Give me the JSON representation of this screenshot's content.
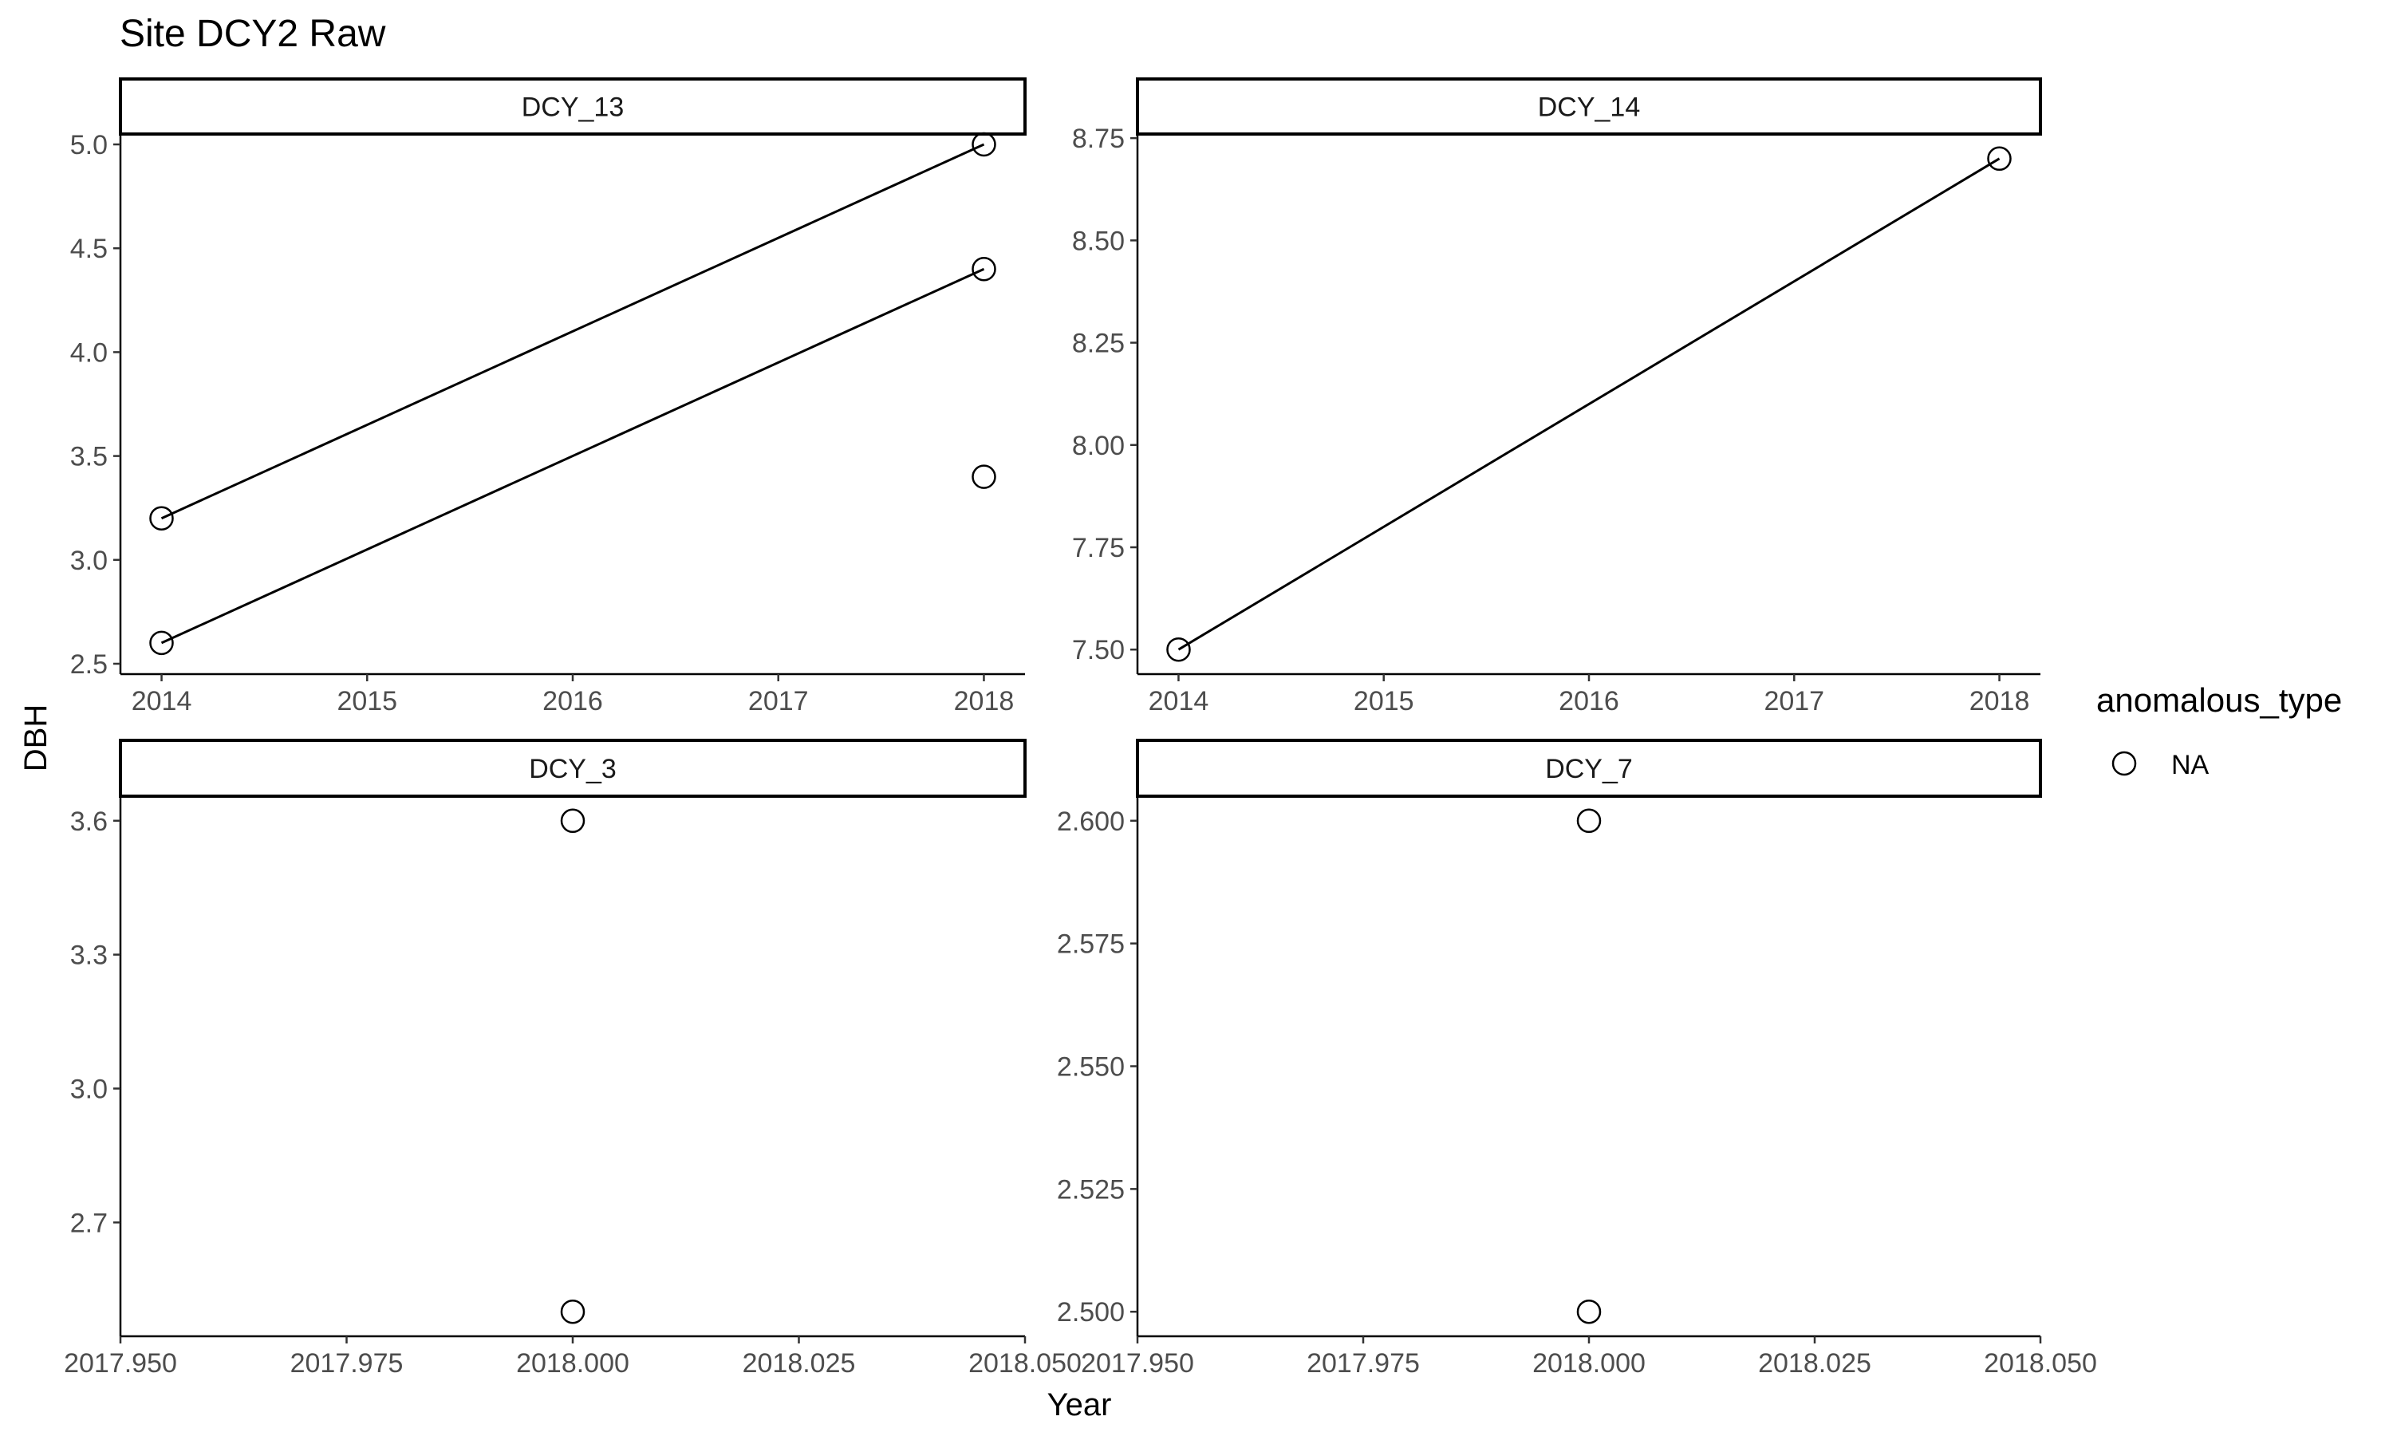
{
  "chart_data": {
    "type": "scatter",
    "title": "Site DCY2 Raw",
    "xlabel": "Year",
    "ylabel": "DBH",
    "grid": false,
    "legend": {
      "title": "anomalous_type",
      "placement": "right",
      "entries": [
        {
          "label": "NA",
          "marker": "open-circle"
        }
      ]
    },
    "panels": [
      {
        "name": "DCY_13",
        "xlim": [
          2013.8,
          2018.2
        ],
        "ylim": [
          2.45,
          5.05
        ],
        "xticks": [
          2014,
          2015,
          2016,
          2017,
          2018
        ],
        "xtick_labels": [
          "2014",
          "2015",
          "2016",
          "2017",
          "2018"
        ],
        "yticks": [
          2.5,
          3.0,
          3.5,
          4.0,
          4.5,
          5.0
        ],
        "ytick_labels": [
          "2.5",
          "3.0",
          "3.5",
          "4.0",
          "4.5",
          "5.0"
        ],
        "points": [
          {
            "x": 2014,
            "y": 3.2
          },
          {
            "x": 2014,
            "y": 2.6
          },
          {
            "x": 2018,
            "y": 5.0
          },
          {
            "x": 2018,
            "y": 4.4
          },
          {
            "x": 2018,
            "y": 3.4
          }
        ],
        "lines": [
          [
            {
              "x": 2014,
              "y": 3.2
            },
            {
              "x": 2018,
              "y": 5.0
            }
          ],
          [
            {
              "x": 2014,
              "y": 2.6
            },
            {
              "x": 2018,
              "y": 4.4
            }
          ]
        ]
      },
      {
        "name": "DCY_14",
        "xlim": [
          2013.8,
          2018.2
        ],
        "ylim": [
          7.44,
          8.76
        ],
        "xticks": [
          2014,
          2015,
          2016,
          2017,
          2018
        ],
        "xtick_labels": [
          "2014",
          "2015",
          "2016",
          "2017",
          "2018"
        ],
        "yticks": [
          7.5,
          7.75,
          8.0,
          8.25,
          8.5,
          8.75
        ],
        "ytick_labels": [
          "7.50",
          "7.75",
          "8.00",
          "8.25",
          "8.50",
          "8.75"
        ],
        "points": [
          {
            "x": 2014,
            "y": 7.5
          },
          {
            "x": 2018,
            "y": 8.7
          }
        ],
        "lines": [
          [
            {
              "x": 2014,
              "y": 7.5
            },
            {
              "x": 2018,
              "y": 8.7
            }
          ]
        ]
      },
      {
        "name": "DCY_3",
        "xlim": [
          2017.95,
          2018.05
        ],
        "ylim": [
          2.445,
          3.655
        ],
        "xticks": [
          2017.95,
          2017.975,
          2018.0,
          2018.025,
          2018.05
        ],
        "xtick_labels": [
          "2017.950",
          "2017.975",
          "2018.000",
          "2018.025",
          "2018.050"
        ],
        "yticks": [
          2.7,
          3.0,
          3.3,
          3.6
        ],
        "ytick_labels": [
          "2.7",
          "3.0",
          "3.3",
          "3.6"
        ],
        "points": [
          {
            "x": 2018.0,
            "y": 3.6
          },
          {
            "x": 2018.0,
            "y": 2.5
          }
        ],
        "lines": []
      },
      {
        "name": "DCY_7",
        "xlim": [
          2017.95,
          2018.05
        ],
        "ylim": [
          2.495,
          2.605
        ],
        "xticks": [
          2017.95,
          2017.975,
          2018.0,
          2018.025,
          2018.05
        ],
        "xtick_labels": [
          "2017.950",
          "2017.975",
          "2018.000",
          "2018.025",
          "2018.050"
        ],
        "yticks": [
          2.5,
          2.525,
          2.55,
          2.575,
          2.6
        ],
        "ytick_labels": [
          "2.500",
          "2.525",
          "2.550",
          "2.575",
          "2.600"
        ],
        "points": [
          {
            "x": 2018.0,
            "y": 2.6
          },
          {
            "x": 2018.0,
            "y": 2.5
          }
        ],
        "lines": []
      }
    ]
  }
}
